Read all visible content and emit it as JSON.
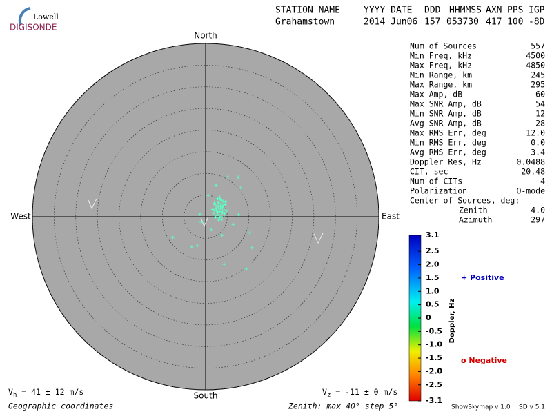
{
  "header": {
    "logo_top": "Lowell",
    "logo_bottom": "DIGISONDE",
    "labels": [
      "STATION NAME",
      "YYYY DATE",
      "DDD",
      "HHMMSS",
      "AXN",
      "PPS",
      "IGP"
    ],
    "values": [
      "Grahamstown",
      "2014 Jun06",
      "157",
      "053730",
      "417",
      "100",
      "-8D"
    ]
  },
  "stats": {
    "rows": [
      [
        "Num of Sources",
        "557"
      ],
      [
        "Min Freq, kHz",
        "4500"
      ],
      [
        "Max Freq, kHz",
        "4850"
      ],
      [
        "Min Range, km",
        "245"
      ],
      [
        "Max Range, km",
        "295"
      ],
      [
        "Max Amp, dB",
        "60"
      ],
      [
        "Max SNR Amp, dB",
        "54"
      ],
      [
        "Min SNR Amp, dB",
        "12"
      ],
      [
        "Avg SNR Amp, dB",
        "28"
      ],
      [
        "Max RMS Err, deg",
        "12.0"
      ],
      [
        "Min RMS Err, deg",
        "0.0"
      ],
      [
        "Avg RMS Err, deg",
        "3.4"
      ],
      [
        "Doppler Res, Hz",
        "0.0488"
      ],
      [
        "CIT, sec",
        "20.48"
      ],
      [
        "Num of CITs",
        "4"
      ],
      [
        "Polarization",
        "O-mode"
      ]
    ],
    "center_title": "Center of Sources, deg:",
    "center_rows": [
      [
        "Zenith",
        "4.0"
      ],
      [
        "Azimuth",
        "297"
      ]
    ]
  },
  "chart_data": {
    "type": "skymap",
    "directions": {
      "north": "North",
      "south": "South",
      "east": "East",
      "west": "West"
    },
    "rlim": [
      0,
      40
    ],
    "rticks": [
      5,
      10,
      15,
      20,
      25,
      30,
      35,
      40
    ],
    "color": "#5cffc4",
    "x": [
      2.5,
      3.0,
      3.4,
      2.8,
      3.9,
      4.2,
      2.2,
      3.6,
      3.1,
      4.5,
      2.9,
      3.3,
      3.8,
      2.6,
      4.0,
      3.5,
      2.4,
      4.3,
      3.0,
      3.7,
      1.9,
      4.8,
      3.2,
      2.7,
      3.9,
      3.4,
      2.1,
      4.1,
      3.6,
      2.8,
      5.2,
      1.6,
      3.0,
      4.6,
      3.3,
      2.3,
      3.8,
      4.4,
      2.0,
      3.5,
      -7.6,
      -3.2,
      -1.9,
      4.3,
      9.4,
      10.7,
      10.2,
      7.5,
      8.1,
      5.1,
      2.4,
      0.6,
      -1.3,
      -1.0,
      6.4,
      7.6,
      1.3,
      3.8
    ],
    "y": [
      1.5,
      2.0,
      2.4,
      1.0,
      2.2,
      1.6,
      2.7,
      3.0,
      0.5,
      2.8,
      3.3,
      1.2,
      0.9,
      0.2,
      3.5,
      1.8,
      1.9,
      0.4,
      2.9,
      3.8,
      0.8,
      1.3,
      -0.3,
      2.3,
      1.1,
      3.9,
      1.4,
      2.6,
      0.1,
      4.2,
      2.0,
      1.7,
      -0.8,
      3.4,
      4.5,
      -0.2,
      -0.6,
      0.7,
      3.1,
      2.5,
      -4.8,
      -7.0,
      -6.7,
      -11.0,
      -12.1,
      -7.2,
      -3.7,
      9.1,
      6.7,
      9.2,
      7.3,
      4.9,
      0.6,
      -1.3,
      -1.8,
      0.5,
      -3.0,
      -4.3
    ],
    "colorbar": {
      "label": "Doppler, Hz",
      "lim": [
        -3.1,
        3.1
      ],
      "ticks": [
        3.1,
        2.5,
        {
          "value": 2,
          "label": "2.0"
        },
        1.5,
        {
          "value": 1,
          "label": "1.0"
        },
        0.5,
        0,
        -0.5,
        {
          "value": -1,
          "label": "-1.0"
        },
        -1.5,
        {
          "value": -2,
          "label": "-2.0"
        },
        -2.5,
        -3.1
      ]
    },
    "legend": {
      "positive": "+ Positive",
      "negative": "o Negative"
    },
    "vh": {
      "symbol": "V",
      "sub": "h",
      "text": " = 41 ± 12 m/s"
    },
    "vz": {
      "symbol": "V",
      "sub": "z",
      "text": " = -11 ± 0 m/s"
    },
    "footer_left": "Geographic coordinates",
    "footer_mid": "Zenith: max 40°  step 5°",
    "footer_app": "ShowSkymap v 1.0",
    "footer_sd": "SD v 5.1"
  }
}
